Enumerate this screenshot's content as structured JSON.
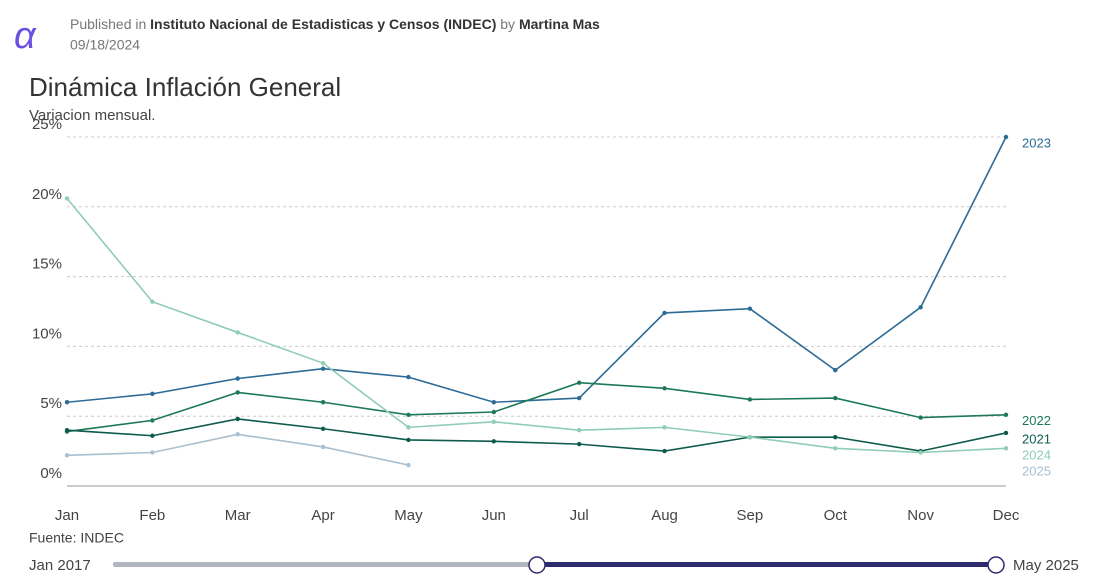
{
  "header": {
    "published_in": "Published in",
    "publisher": "Instituto Nacional de Estadisticas y Censos (INDEC)",
    "by": "by",
    "author": "Martina Mas",
    "date": "09/18/2024"
  },
  "chart_data": {
    "type": "line",
    "title": "Dinámica Inflación General",
    "subtitle": "Variacion mensual.",
    "categories": [
      "Jan",
      "Feb",
      "Mar",
      "Apr",
      "May",
      "Jun",
      "Jul",
      "Aug",
      "Sep",
      "Oct",
      "Nov",
      "Dec"
    ],
    "series": [
      {
        "name": "2023",
        "color": "#2c6b96",
        "values": [
          6.0,
          6.6,
          7.7,
          8.4,
          7.8,
          6.0,
          6.3,
          12.4,
          12.7,
          8.3,
          12.8,
          25.0
        ]
      },
      {
        "name": "2022",
        "color": "#1d7a57",
        "values": [
          3.9,
          4.7,
          6.7,
          6.0,
          5.1,
          5.3,
          7.4,
          7.0,
          6.2,
          6.3,
          4.9,
          5.1
        ]
      },
      {
        "name": "2021",
        "color": "#0e5b4c",
        "values": [
          4.0,
          3.6,
          4.8,
          4.1,
          3.3,
          3.2,
          3.0,
          2.5,
          3.5,
          3.5,
          2.5,
          3.8
        ]
      },
      {
        "name": "2024",
        "color": "#8fcdb4",
        "values": [
          20.6,
          13.2,
          11.0,
          8.8,
          4.2,
          4.6,
          4.0,
          4.2,
          3.5,
          2.7,
          2.4,
          2.7
        ]
      },
      {
        "name": "2025",
        "color": "#a9c0d0",
        "values": [
          2.2,
          2.4,
          3.7,
          2.8,
          1.5,
          null,
          null,
          null,
          null,
          null,
          null,
          null
        ]
      }
    ],
    "ylim": [
      0,
      25
    ],
    "yticks": [
      {
        "value": 0,
        "label": "0%"
      },
      {
        "value": 5,
        "label": "5%"
      },
      {
        "value": 10,
        "label": "10%"
      },
      {
        "value": 15,
        "label": "15%"
      },
      {
        "value": 20,
        "label": "20%"
      },
      {
        "value": 25,
        "label": "25%"
      }
    ],
    "grid": true,
    "source": "Fuente: INDEC"
  },
  "slider": {
    "start": "Jan 2017",
    "end": "May 2025"
  }
}
